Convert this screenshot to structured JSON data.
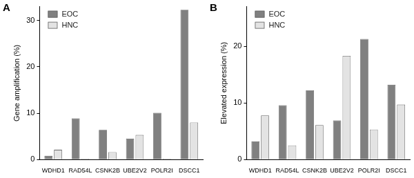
{
  "chart_data": [
    {
      "type": "bar",
      "title": "A",
      "y_label": "Gene amplification (%)",
      "categories": [
        "WDHD1",
        "RAD54L",
        "CSNK2B",
        "UBE2V2",
        "POLR2I",
        "DSCC1"
      ],
      "series": [
        {
          "name": "EOC",
          "color": "#808080",
          "values": [
            0.8,
            8.9,
            6.4,
            4.5,
            10.1,
            32.3
          ]
        },
        {
          "name": "HNC",
          "color": "#e3e3e3",
          "values": [
            2.1,
            0.2,
            1.6,
            5.3,
            0.2,
            8.0
          ]
        }
      ],
      "ylim": [
        0,
        33
      ],
      "yticks": [
        0,
        10,
        20,
        30
      ],
      "grid": false,
      "legend": "upper left"
    },
    {
      "type": "bar",
      "title": "B",
      "y_label": "Elevated expression (%)",
      "categories": [
        "WDHD1",
        "RAD54L",
        "CSNK2B",
        "UBE2V2",
        "POLR2I",
        "DSCC1"
      ],
      "series": [
        {
          "name": "EOC",
          "color": "#808080",
          "values": [
            3.2,
            9.6,
            12.2,
            6.9,
            21.3,
            13.2
          ]
        },
        {
          "name": "HNC",
          "color": "#e3e3e3",
          "values": [
            7.8,
            2.5,
            6.1,
            18.3,
            5.3,
            9.7
          ]
        }
      ],
      "ylim": [
        0,
        27
      ],
      "yticks": [
        0,
        10,
        20
      ],
      "grid": false,
      "legend": "upper left"
    }
  ]
}
